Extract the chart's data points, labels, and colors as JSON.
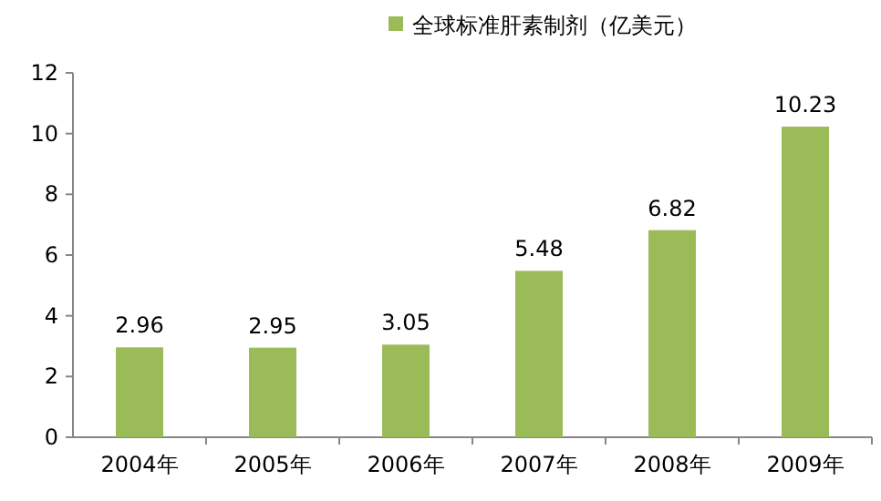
{
  "chart_data": {
    "type": "bar",
    "categories": [
      "2004年",
      "2005年",
      "2006年",
      "2007年",
      "2008年",
      "2009年"
    ],
    "series": [
      {
        "name": "全球标准肝素制剂（亿美元）",
        "color": "#9bbb59",
        "values": [
          2.96,
          2.95,
          3.05,
          5.48,
          6.82,
          10.23
        ]
      }
    ],
    "ylim": [
      0,
      12
    ],
    "yticks": [
      0,
      2,
      4,
      6,
      8,
      10,
      12
    ],
    "grid": false,
    "legend": "top",
    "data_labels": true
  }
}
